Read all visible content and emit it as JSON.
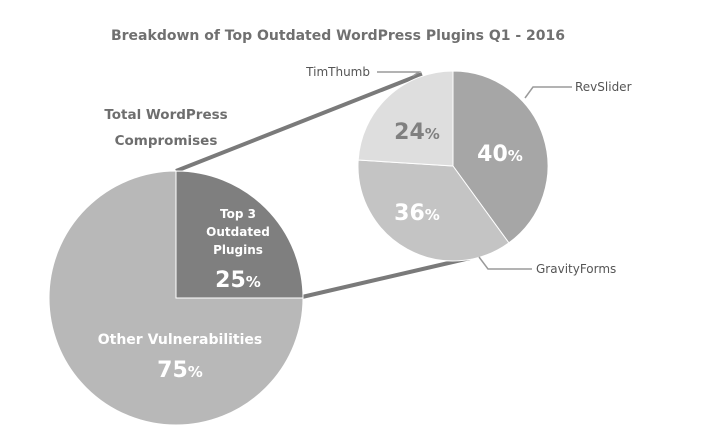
{
  "chart_data": [
    {
      "type": "pie",
      "title": "Total WordPress Compromises",
      "title_lines": [
        "Total WordPress",
        "Compromises"
      ],
      "slices": [
        {
          "label": "Other Vulnerabilities",
          "value": 75,
          "display": "75",
          "color": "#b8b8b8"
        },
        {
          "label": "Top 3 Outdated Plugins",
          "label_lines": [
            "Top 3",
            "Outdated",
            "Plugins"
          ],
          "value": 25,
          "display": "25",
          "color": "#7f7f7f"
        }
      ]
    },
    {
      "type": "pie",
      "title": "Breakdown of Top Outdated WordPress Plugins Q1 - 2016",
      "slices": [
        {
          "label": "RevSlider",
          "value": 40,
          "display": "40",
          "color": "#a6a6a6"
        },
        {
          "label": "GravityForms",
          "value": 36,
          "display": "36",
          "color": "#c4c4c4"
        },
        {
          "label": "TimThumb",
          "value": 24,
          "display": "24",
          "color": "#dedede"
        }
      ]
    }
  ],
  "percent_sign": "%"
}
